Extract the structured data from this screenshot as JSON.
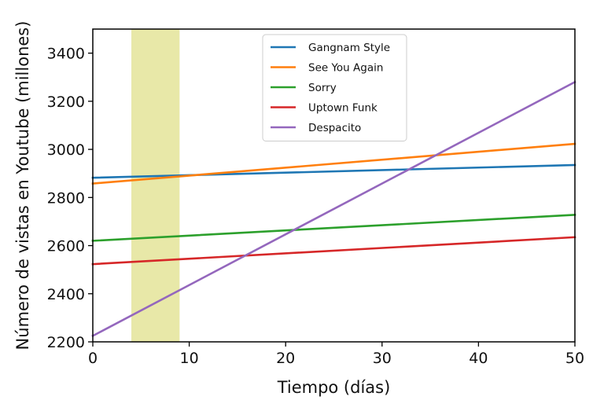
{
  "chart_data": {
    "type": "line",
    "title": "",
    "xlabel": "Tiempo (días)",
    "ylabel": "Número de vistas en Youtube (millones)",
    "xlim": [
      0,
      50
    ],
    "ylim": [
      2200,
      3500
    ],
    "xticks": [
      0,
      10,
      20,
      30,
      40,
      50
    ],
    "yticks": [
      2200,
      2400,
      2600,
      2800,
      3000,
      3200,
      3400
    ],
    "grid": false,
    "legend_position": "top-center",
    "highlight_band": {
      "x_start": 4,
      "x_end": 9,
      "color": "#e8e8a8"
    },
    "series": [
      {
        "name": "Gangnam Style",
        "color": "#1f77b4",
        "x": [
          0,
          50
        ],
        "values": [
          2882,
          2935
        ]
      },
      {
        "name": "See You Again",
        "color": "#ff7f0e",
        "x": [
          0,
          50
        ],
        "values": [
          2858,
          3023
        ]
      },
      {
        "name": "Sorry",
        "color": "#2ca02c",
        "x": [
          0,
          50
        ],
        "values": [
          2620,
          2728
        ]
      },
      {
        "name": "Uptown Funk",
        "color": "#d62728",
        "x": [
          0,
          50
        ],
        "values": [
          2523,
          2635
        ]
      },
      {
        "name": "Despacito",
        "color": "#9467bd",
        "x": [
          0,
          50
        ],
        "values": [
          2225,
          3280
        ]
      }
    ]
  }
}
